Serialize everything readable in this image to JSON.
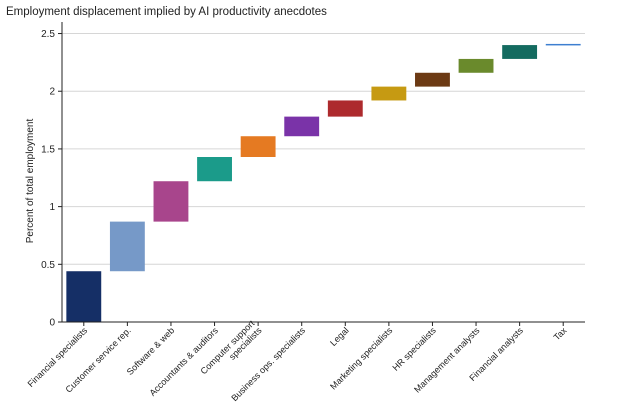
{
  "chart_data": {
    "type": "bar",
    "title": "Employment displacement implied by AI productivity anecdotes",
    "xlabel": "",
    "ylabel": "Percent of total employment",
    "ylim": [
      0,
      2.6
    ],
    "yticks": [
      0,
      0.5,
      1,
      1.5,
      2,
      2.5
    ],
    "ytick_labels": [
      "0",
      "0.5",
      "1",
      "1.5",
      "2",
      "2.5"
    ],
    "grid": true,
    "legend": "none",
    "categories": [
      "Financial specialists",
      "Customer service rep.",
      "Software & web",
      "Accountants & auditors",
      "Computer support specialists",
      "Business ops. specialists",
      "Legal",
      "Marketing specialists",
      "HR specialists",
      "Management analysts",
      "Financial analysts",
      "Tax"
    ],
    "category_label_lines": [
      [
        "Financial specialists"
      ],
      [
        "Customer service rep."
      ],
      [
        "Software & web"
      ],
      [
        "Accountants & auditors"
      ],
      [
        "Computer support",
        "specialists"
      ],
      [
        "Business ops. specialists"
      ],
      [
        "Legal"
      ],
      [
        "Marketing specialists"
      ],
      [
        "HR specialists"
      ],
      [
        "Management analysts"
      ],
      [
        "Financial analysts"
      ],
      [
        "Tax"
      ]
    ],
    "bar_start": [
      0,
      0.44,
      0.87,
      1.22,
      1.43,
      1.61,
      1.78,
      1.92,
      2.04,
      2.16,
      2.28,
      2.4
    ],
    "bar_end": [
      0.44,
      0.87,
      1.22,
      1.43,
      1.61,
      1.78,
      1.92,
      2.04,
      2.16,
      2.28,
      2.4,
      2.41
    ],
    "colors": [
      "#152f66",
      "#7699c8",
      "#a8458c",
      "#1b9b8a",
      "#e57a22",
      "#7a33a8",
      "#ad2a2d",
      "#c69a12",
      "#6c3a14",
      "#6a8a2c",
      "#146b60",
      "#3d7fd0"
    ]
  }
}
